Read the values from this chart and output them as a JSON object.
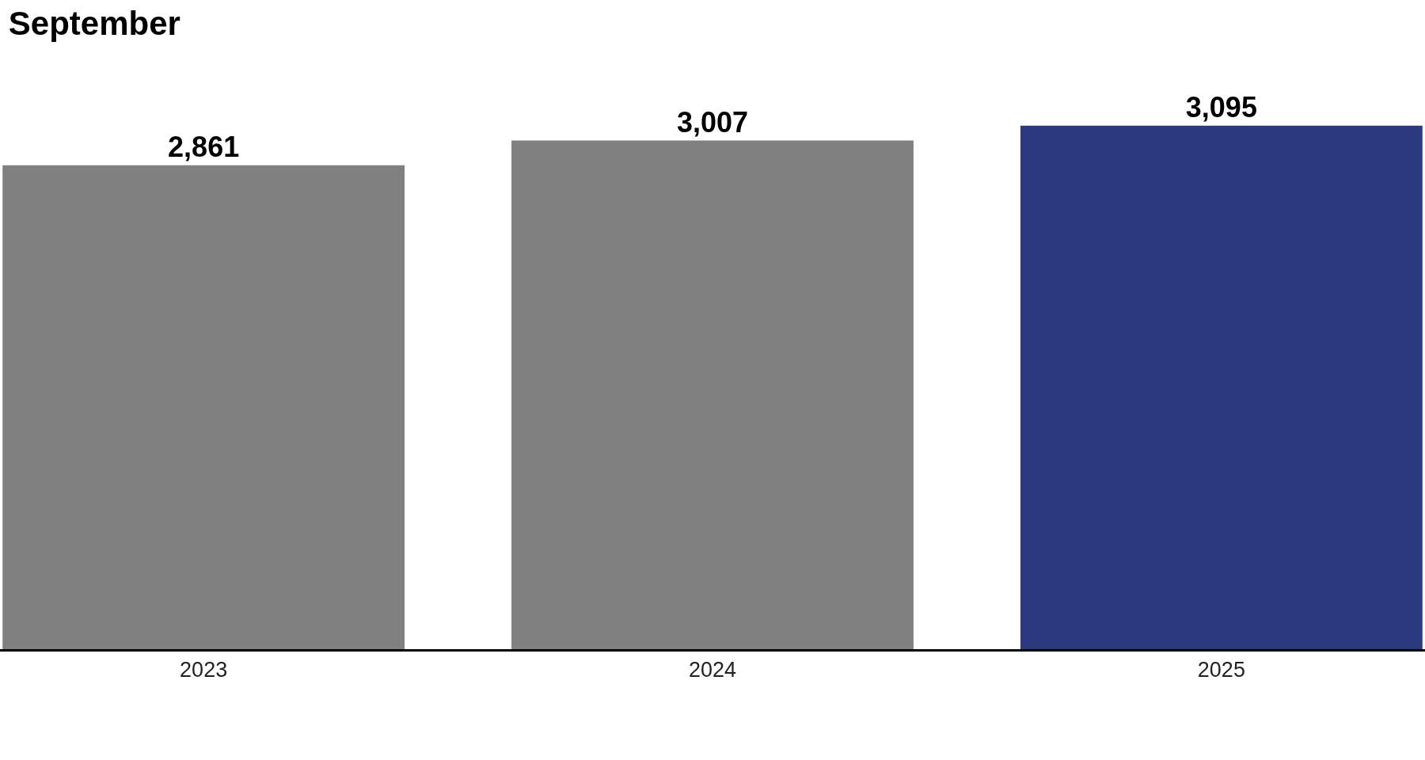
{
  "chart_data": {
    "type": "bar",
    "title": "September",
    "categories": [
      "2023",
      "2024",
      "2025"
    ],
    "values": [
      2861,
      3007,
      3095
    ],
    "colors": [
      "#808080",
      "#808080",
      "#2b3a7e"
    ],
    "value_labels": [
      "2,861",
      "3,007",
      "3,095"
    ],
    "tick_labels": "x"
  }
}
